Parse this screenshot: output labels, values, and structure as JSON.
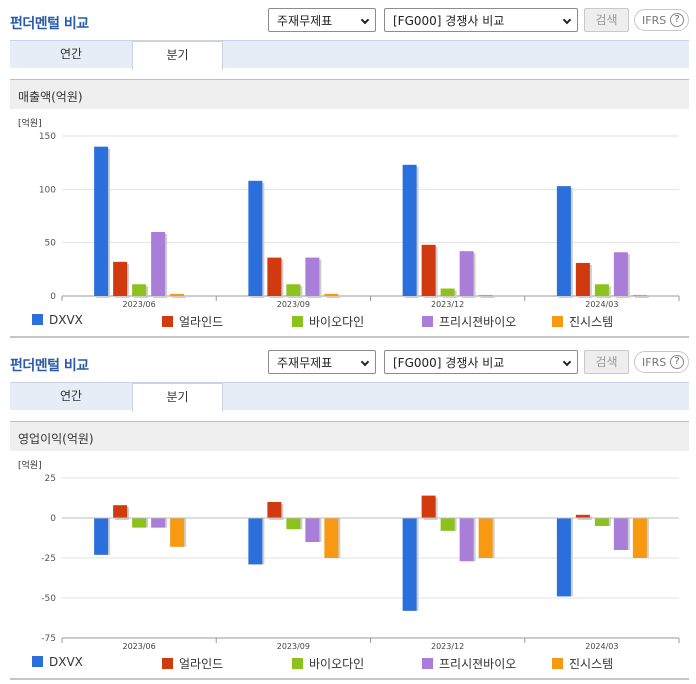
{
  "header": {
    "title": "펀더멘털 비교",
    "select_type": "주재무제표",
    "select_compare": "[FG000] 경쟁사 비교",
    "search_label": "검색",
    "ifrs_label": "IFRS",
    "ifrs_help": "?"
  },
  "tabs": [
    {
      "label": "연간"
    },
    {
      "label": "분기"
    }
  ],
  "colors": {
    "DXVX": "#2a6fdb",
    "얼라인드": "#d13a0f",
    "바이오다인": "#8cc21b",
    "프리시젼바이오": "#a87ed8",
    "진시스템": "#f79a12"
  },
  "legend": [
    "DXVX",
    "얼라인드",
    "바이오다인",
    "프리시젼바이오",
    "진시스템"
  ],
  "chart_data": [
    {
      "type": "bar",
      "metric_label": "매출액(억원)",
      "unit_label": "[억원]",
      "categories": [
        "2023/06",
        "2023/09",
        "2023/12",
        "2024/03"
      ],
      "ylim": [
        0,
        150
      ],
      "yticks": [
        0,
        50,
        100,
        150
      ],
      "series": [
        {
          "name": "DXVX",
          "values": [
            140,
            108,
            123,
            103
          ]
        },
        {
          "name": "얼라인드",
          "values": [
            32,
            36,
            48,
            31
          ]
        },
        {
          "name": "바이오다인",
          "values": [
            11,
            11,
            7,
            11
          ]
        },
        {
          "name": "프리시젼바이오",
          "values": [
            60,
            36,
            42,
            41
          ]
        },
        {
          "name": "진시스템",
          "values": [
            2,
            2,
            1,
            1
          ]
        }
      ],
      "grid": true,
      "legend_position": "bottom"
    },
    {
      "type": "bar",
      "metric_label": "영업이익(억원)",
      "unit_label": "[억원]",
      "categories": [
        "2023/06",
        "2023/09",
        "2023/12",
        "2024/03"
      ],
      "ylim": [
        -75,
        25
      ],
      "yticks": [
        -75,
        -50,
        -25,
        0,
        25
      ],
      "series": [
        {
          "name": "DXVX",
          "values": [
            -23,
            -29,
            -58,
            -49
          ]
        },
        {
          "name": "얼라인드",
          "values": [
            8,
            10,
            14,
            2
          ]
        },
        {
          "name": "바이오다인",
          "values": [
            -6,
            -7,
            -8,
            -5
          ]
        },
        {
          "name": "프리시젼바이오",
          "values": [
            -6,
            -15,
            -27,
            -20
          ]
        },
        {
          "name": "진시스템",
          "values": [
            -18,
            -25,
            -25,
            -25
          ]
        }
      ],
      "grid": true,
      "legend_position": "bottom"
    }
  ]
}
